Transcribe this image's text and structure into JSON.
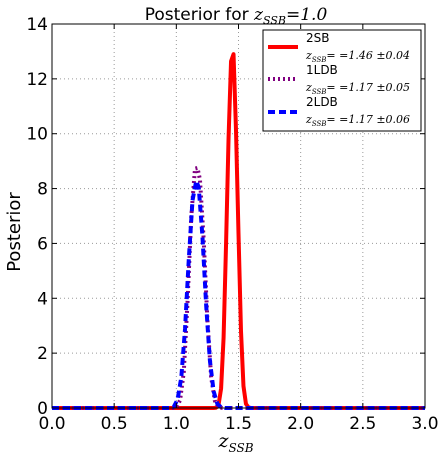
{
  "chart_data": {
    "type": "line",
    "title_text": "Posterior for ",
    "title_math": "z",
    "title_math_sub": "SSB",
    "title_value": "=1.0",
    "xlabel_math": "z",
    "xlabel_math_sub": "SSB",
    "ylabel": "Posterior",
    "xlim": [
      0.0,
      3.0
    ],
    "ylim": [
      0,
      14
    ],
    "xticks": [
      "0.0",
      "0.5",
      "1.0",
      "1.5",
      "2.0",
      "2.5",
      "3.0"
    ],
    "yticks": [
      "0",
      "2",
      "4",
      "6",
      "8",
      "10",
      "12",
      "14"
    ],
    "grid": true,
    "legend_position": "top-right",
    "series": [
      {
        "name": "2SB",
        "label": "z_SSB = =1.46 ±0.04",
        "label_value": "= =1.46 ±0.04",
        "color": "#ff0000",
        "style": "solid",
        "peak": 12.9,
        "x": [
          0.0,
          1.3,
          1.32,
          1.34,
          1.36,
          1.38,
          1.4,
          1.42,
          1.44,
          1.46,
          1.48,
          1.5,
          1.52,
          1.54,
          1.56,
          1.58,
          1.6,
          3.0
        ],
        "y": [
          0.0,
          0.0,
          0.01,
          0.13,
          0.71,
          2.56,
          6.0,
          9.83,
          12.64,
          12.9,
          10.11,
          6.36,
          2.81,
          0.8,
          0.15,
          0.02,
          0.0,
          0.0
        ]
      },
      {
        "name": "1LDB",
        "label": "z_SSB = =1.17 ±0.05",
        "label_value": "= =1.17 ±0.05",
        "color": "#800080",
        "style": "dotted",
        "peak": 8.75,
        "x": [
          0.0,
          0.97,
          1.0,
          1.03,
          1.06,
          1.09,
          1.12,
          1.15,
          1.17,
          1.19,
          1.22,
          1.25,
          1.28,
          1.31,
          1.34,
          1.37,
          3.0
        ],
        "y": [
          0.0,
          0.0,
          0.03,
          0.28,
          1.32,
          3.86,
          6.98,
          8.73,
          8.75,
          8.33,
          6.14,
          3.2,
          1.12,
          0.26,
          0.04,
          0.0,
          0.0
        ]
      },
      {
        "name": "2LDB",
        "label": "z_SSB = =1.17 ±0.06",
        "label_value": "= =1.17 ±0.06",
        "color": "#0000ff",
        "style": "dashed",
        "peak": 8.3,
        "x": [
          0.0,
          0.95,
          0.98,
          1.01,
          1.04,
          1.07,
          1.1,
          1.13,
          1.16,
          1.18,
          1.21,
          1.24,
          1.27,
          1.3,
          1.33,
          1.36,
          1.39,
          3.0
        ],
        "y": [
          0.0,
          0.0,
          0.05,
          0.31,
          1.12,
          2.89,
          5.41,
          7.57,
          8.28,
          8.05,
          6.26,
          3.74,
          1.73,
          0.61,
          0.15,
          0.03,
          0.0,
          0.0
        ]
      }
    ]
  }
}
